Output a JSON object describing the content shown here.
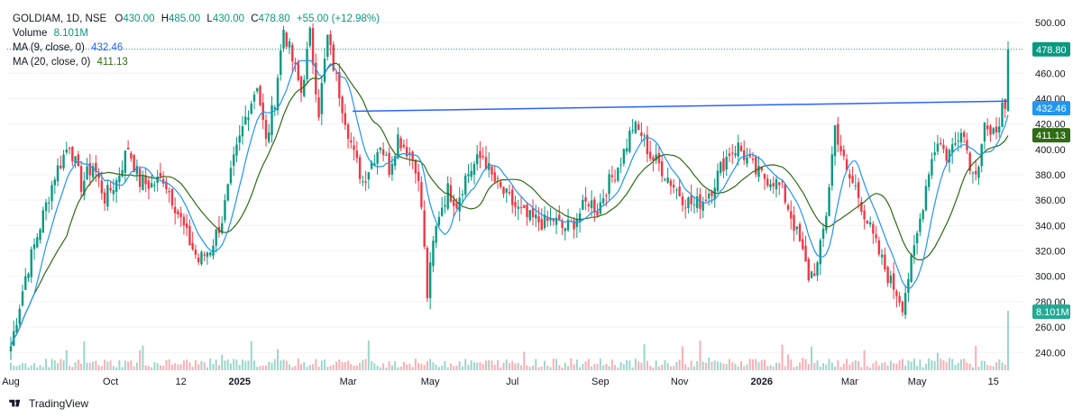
{
  "legend": {
    "symbol": "GOLDIAM, 1D, NSE",
    "o_label": "O",
    "o_value": "430.00",
    "h_label": "H",
    "h_value": "485.00",
    "l_label": "L",
    "l_value": "430.00",
    "c_label": "C",
    "c_value": "478.80",
    "change": "+55.00 (+12.98%)",
    "volume_label": "Volume",
    "volume_value": "8.101M",
    "ma9_label": "MA (9, close, 0)",
    "ma9_value": "432.46",
    "ma20_label": "MA (20, close, 0)",
    "ma20_value": "411.13"
  },
  "brand": {
    "name": "TradingView",
    "logo_icon": "tradingview-logo-icon"
  },
  "colors": {
    "up": "#089981",
    "down": "#f23645",
    "ma9": "#2196f3",
    "ma20": "#2e6b13",
    "trendline": "#2962ff",
    "grid": "#f0f3fa",
    "text": "#131722"
  },
  "chart_data": {
    "type": "candlestick",
    "y_axis_ticks": [
      240,
      260,
      280,
      300,
      320,
      340,
      360,
      380,
      400,
      420,
      440,
      460,
      480,
      500
    ],
    "ylim": [
      226,
      512
    ],
    "x_axis_labels": [
      "Aug",
      "Oct",
      "12",
      "2025",
      "Mar",
      "May",
      "Jul",
      "Sep",
      "Nov",
      "2026",
      "Mar",
      "May",
      "15"
    ],
    "price_badges": [
      {
        "label": "478.80",
        "value": 478.8,
        "color": "#089981"
      },
      {
        "label": "432.46",
        "value": 432.46,
        "color": "#2196f3"
      },
      {
        "label": "411.13",
        "value": 411.13,
        "color": "#2e6b13"
      }
    ],
    "volume_badge": {
      "label": "8.101M",
      "color": "#22ab94"
    },
    "last_price": 478.8,
    "trendline": {
      "start": {
        "x": "Mar 2025",
        "y": 430
      },
      "end": {
        "x": "15 May 2026",
        "y": 438
      }
    },
    "close_anchors": [
      [
        0,
        245
      ],
      [
        5,
        300
      ],
      [
        10,
        340
      ],
      [
        15,
        380
      ],
      [
        20,
        405
      ],
      [
        24,
        372
      ],
      [
        28,
        388
      ],
      [
        32,
        362
      ],
      [
        36,
        375
      ],
      [
        40,
        402
      ],
      [
        44,
        374
      ],
      [
        48,
        372
      ],
      [
        52,
        378
      ],
      [
        56,
        356
      ],
      [
        60,
        332
      ],
      [
        64,
        312
      ],
      [
        68,
        322
      ],
      [
        72,
        345
      ],
      [
        76,
        390
      ],
      [
        80,
        425
      ],
      [
        84,
        452
      ],
      [
        87,
        405
      ],
      [
        90,
        440
      ],
      [
        93,
        495
      ],
      [
        96,
        470
      ],
      [
        99,
        445
      ],
      [
        102,
        490
      ],
      [
        105,
        430
      ],
      [
        108,
        488
      ],
      [
        111,
        455
      ],
      [
        114,
        425
      ],
      [
        117,
        395
      ],
      [
        120,
        375
      ],
      [
        123,
        390
      ],
      [
        126,
        405
      ],
      [
        129,
        385
      ],
      [
        132,
        410
      ],
      [
        135,
        400
      ],
      [
        138,
        388
      ],
      [
        140,
        355
      ],
      [
        142,
        285
      ],
      [
        144,
        325
      ],
      [
        146,
        350
      ],
      [
        149,
        368
      ],
      [
        152,
        358
      ],
      [
        155,
        378
      ],
      [
        158,
        388
      ],
      [
        161,
        395
      ],
      [
        164,
        378
      ],
      [
        167,
        368
      ],
      [
        170,
        360
      ],
      [
        173,
        352
      ],
      [
        176,
        346
      ],
      [
        179,
        344
      ],
      [
        182,
        342
      ],
      [
        185,
        345
      ],
      [
        188,
        338
      ],
      [
        191,
        340
      ],
      [
        194,
        350
      ],
      [
        197,
        360
      ],
      [
        200,
        352
      ],
      [
        203,
        370
      ],
      [
        206,
        382
      ],
      [
        209,
        398
      ],
      [
        212,
        418
      ],
      [
        215,
        412
      ],
      [
        218,
        395
      ],
      [
        221,
        388
      ],
      [
        224,
        378
      ],
      [
        227,
        368
      ],
      [
        230,
        360
      ],
      [
        233,
        356
      ],
      [
        236,
        360
      ],
      [
        239,
        370
      ],
      [
        242,
        385
      ],
      [
        245,
        398
      ],
      [
        248,
        402
      ],
      [
        251,
        392
      ],
      [
        254,
        382
      ],
      [
        257,
        378
      ],
      [
        260,
        376
      ],
      [
        263,
        368
      ],
      [
        266,
        348
      ],
      [
        269,
        326
      ],
      [
        272,
        300
      ],
      [
        275,
        308
      ],
      [
        278,
        350
      ],
      [
        281,
        418
      ],
      [
        283,
        400
      ],
      [
        285,
        380
      ],
      [
        288,
        370
      ],
      [
        291,
        350
      ],
      [
        294,
        330
      ],
      [
        297,
        312
      ],
      [
        300,
        295
      ],
      [
        302,
        288
      ],
      [
        304,
        278
      ],
      [
        306,
        300
      ],
      [
        308,
        320
      ],
      [
        310,
        345
      ],
      [
        313,
        385
      ],
      [
        316,
        408
      ],
      [
        319,
        395
      ],
      [
        322,
        405
      ],
      [
        324,
        420
      ],
      [
        326,
        400
      ],
      [
        328,
        380
      ],
      [
        330,
        392
      ],
      [
        332,
        422
      ],
      [
        334,
        405
      ],
      [
        336,
        418
      ],
      [
        338,
        432
      ],
      [
        339,
        425
      ],
      [
        340,
        478.8
      ]
    ],
    "total_days": 341
  }
}
